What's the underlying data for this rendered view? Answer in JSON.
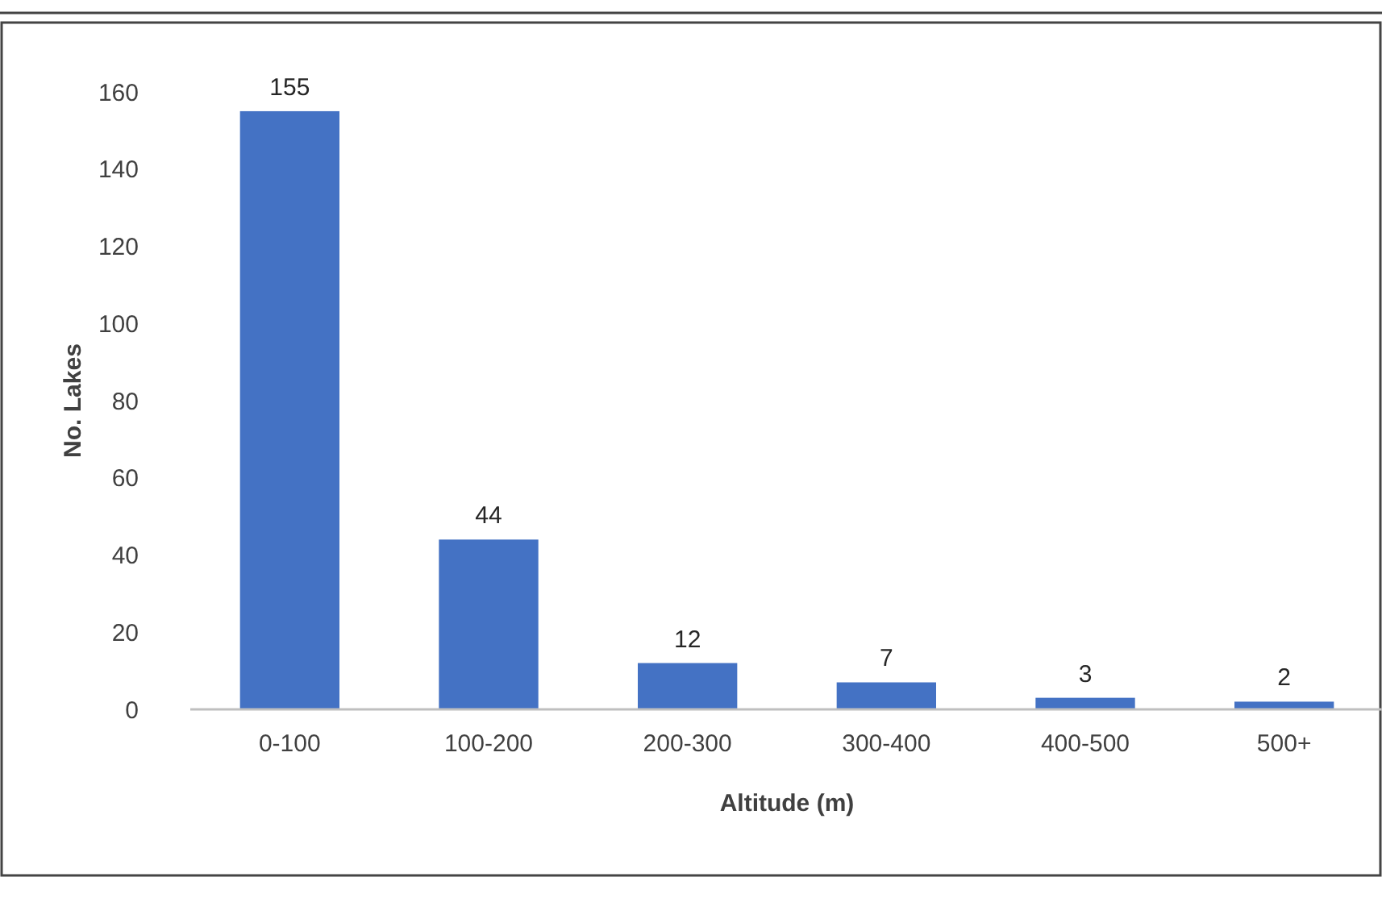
{
  "chart_data": {
    "type": "bar",
    "xlabel": "Altitude (m)",
    "ylabel": "No. Lakes",
    "categories": [
      "0-100",
      "100-200",
      "200-300",
      "300-400",
      "400-500",
      "500+"
    ],
    "values": [
      155,
      44,
      12,
      7,
      3,
      2
    ],
    "color": "#4472c4",
    "ylim": [
      0,
      160
    ],
    "yticks": [
      0,
      20,
      40,
      60,
      80,
      100,
      120,
      140,
      160
    ],
    "data_labels": true
  }
}
